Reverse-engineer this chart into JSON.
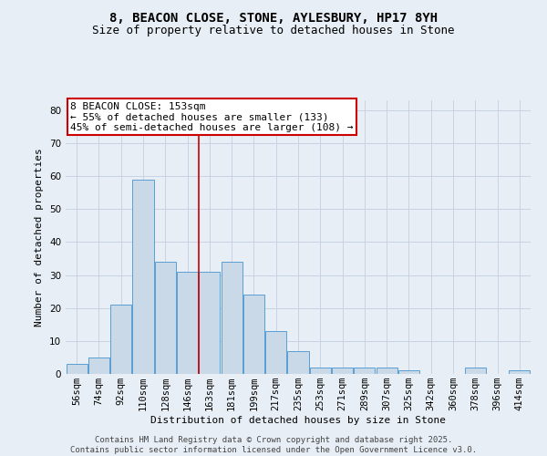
{
  "title1": "8, BEACON CLOSE, STONE, AYLESBURY, HP17 8YH",
  "title2": "Size of property relative to detached houses in Stone",
  "xlabel": "Distribution of detached houses by size in Stone",
  "ylabel": "Number of detached properties",
  "bins": [
    "56sqm",
    "74sqm",
    "92sqm",
    "110sqm",
    "128sqm",
    "146sqm",
    "163sqm",
    "181sqm",
    "199sqm",
    "217sqm",
    "235sqm",
    "253sqm",
    "271sqm",
    "289sqm",
    "307sqm",
    "325sqm",
    "342sqm",
    "360sqm",
    "378sqm",
    "396sqm",
    "414sqm"
  ],
  "bar_values": [
    3,
    5,
    21,
    59,
    34,
    31,
    31,
    34,
    24,
    13,
    7,
    2,
    2,
    2,
    2,
    1,
    0,
    0,
    2,
    0,
    1
  ],
  "bar_color": "#c9d9e8",
  "bar_edge_color": "#5a9fd4",
  "vline_x_index": 5.5,
  "annotation_text": "8 BEACON CLOSE: 153sqm\n← 55% of detached houses are smaller (133)\n45% of semi-detached houses are larger (108) →",
  "annotation_box_color": "#ffffff",
  "annotation_edge_color": "#cc0000",
  "vline_color": "#cc0000",
  "ylim": [
    0,
    83
  ],
  "yticks": [
    0,
    10,
    20,
    30,
    40,
    50,
    60,
    70,
    80
  ],
  "grid_color": "#c8d4e4",
  "background_color": "#e8eef5",
  "footer_text": "Contains HM Land Registry data © Crown copyright and database right 2025.\nContains public sector information licensed under the Open Government Licence v3.0.",
  "title1_fontsize": 10,
  "title2_fontsize": 9,
  "xlabel_fontsize": 8,
  "ylabel_fontsize": 8,
  "annotation_fontsize": 8,
  "footer_fontsize": 6.5,
  "tick_fontsize": 7.5
}
